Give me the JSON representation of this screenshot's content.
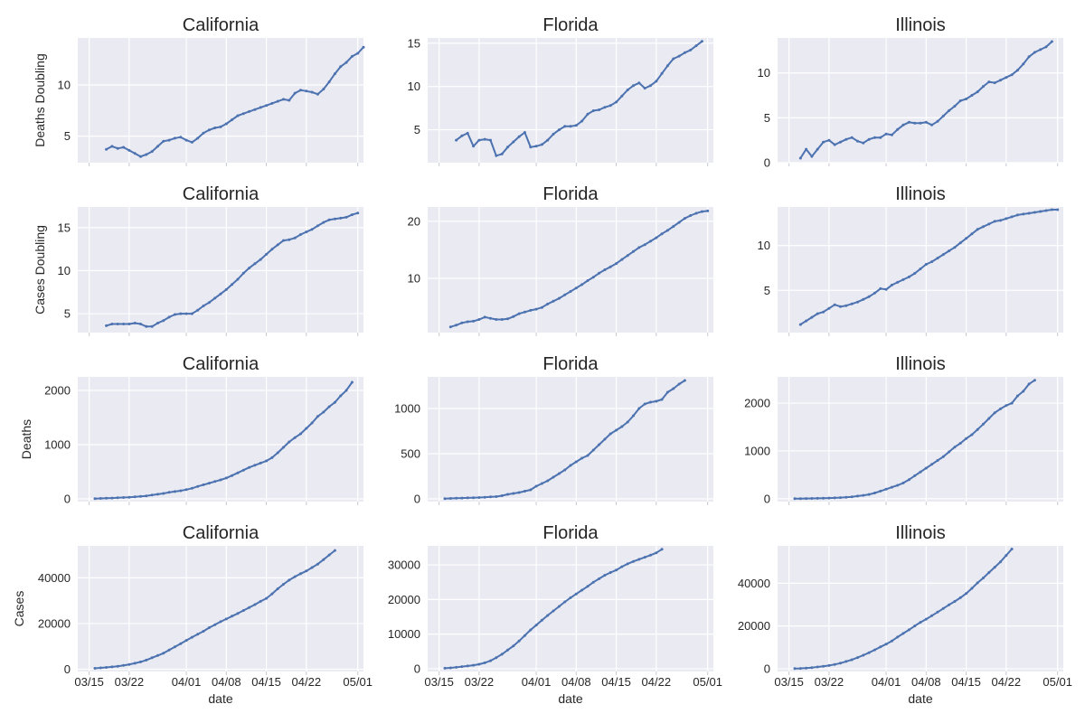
{
  "figure": {
    "xlabel": "date",
    "row_ylabels": [
      "Deaths Doubling",
      "Cases Doubling",
      "Deaths",
      "Cases"
    ],
    "x_tick_labels": [
      "03/15",
      "03/22",
      "04/01",
      "04/08",
      "04/15",
      "04/22",
      "05/01"
    ],
    "line_color": "#4c72b0",
    "background_color": "#eaeaf2",
    "grid_color": "#ffffff",
    "style": "seaborn-darkgrid",
    "grid": true
  },
  "chart_data": [
    {
      "type": "line",
      "title": "California",
      "ylabel": "Deaths Doubling",
      "x_start": "03/18",
      "x_end": "05/01",
      "yticks": [
        5,
        10
      ],
      "ylim": [
        2.4,
        14.6
      ],
      "values": [
        3.7,
        4.0,
        3.8,
        3.9,
        3.6,
        3.3,
        3.0,
        3.2,
        3.5,
        4.0,
        4.5,
        4.6,
        4.8,
        4.9,
        4.6,
        4.4,
        4.8,
        5.3,
        5.6,
        5.8,
        5.9,
        6.2,
        6.6,
        7.0,
        7.2,
        7.4,
        7.6,
        7.8,
        8.0,
        8.2,
        8.4,
        8.6,
        8.5,
        9.2,
        9.5,
        9.4,
        9.3,
        9.1,
        9.6,
        10.3,
        11.1,
        11.8,
        12.2,
        12.8,
        13.1,
        13.7
      ]
    },
    {
      "type": "line",
      "title": "Florida",
      "ylabel": "",
      "x_start": "03/18",
      "x_end": "05/01",
      "yticks": [
        5,
        10,
        15
      ],
      "ylim": [
        1.2,
        15.6
      ],
      "values": [
        3.8,
        4.3,
        4.6,
        3.1,
        3.8,
        3.9,
        3.8,
        2.0,
        2.2,
        3.0,
        3.6,
        4.2,
        4.7,
        3.0,
        3.1,
        3.3,
        3.8,
        4.5,
        5.0,
        5.4,
        5.4,
        5.5,
        6.0,
        6.8,
        7.2,
        7.3,
        7.6,
        7.8,
        8.2,
        8.9,
        9.6,
        10.1,
        10.4,
        9.8,
        10.1,
        10.6,
        11.5,
        12.4,
        13.2,
        13.5,
        13.9,
        14.2,
        14.7,
        15.2
      ]
    },
    {
      "type": "line",
      "title": "Illinois",
      "ylabel": "",
      "x_start": "03/17",
      "x_end": "05/01",
      "yticks": [
        0,
        5,
        10
      ],
      "ylim": [
        0,
        13.9
      ],
      "values": [
        0.5,
        1.5,
        0.7,
        1.5,
        2.3,
        2.5,
        2.0,
        2.3,
        2.6,
        2.8,
        2.4,
        2.2,
        2.6,
        2.8,
        2.8,
        3.2,
        3.1,
        3.7,
        4.2,
        4.5,
        4.4,
        4.4,
        4.5,
        4.2,
        4.6,
        5.2,
        5.8,
        6.3,
        6.9,
        7.1,
        7.5,
        7.9,
        8.5,
        9.0,
        8.9,
        9.2,
        9.5,
        9.8,
        10.3,
        11.0,
        11.8,
        12.3,
        12.6,
        12.9,
        13.5
      ]
    },
    {
      "type": "line",
      "title": "California",
      "ylabel": "Cases Doubling",
      "x_start": "03/18",
      "x_end": "05/01",
      "yticks": [
        5,
        10,
        15
      ],
      "ylim": [
        2.8,
        17.4
      ],
      "values": [
        3.6,
        3.8,
        3.8,
        3.8,
        3.8,
        3.9,
        3.8,
        3.5,
        3.5,
        3.9,
        4.2,
        4.6,
        4.9,
        5.0,
        5.0,
        5.0,
        5.4,
        5.9,
        6.3,
        6.8,
        7.3,
        7.8,
        8.4,
        9.0,
        9.7,
        10.3,
        10.8,
        11.3,
        11.9,
        12.5,
        13.0,
        13.5,
        13.6,
        13.8,
        14.2,
        14.5,
        14.8,
        15.2,
        15.6,
        15.9,
        16.0,
        16.1,
        16.2,
        16.5,
        16.7
      ]
    },
    {
      "type": "line",
      "title": "Florida",
      "ylabel": "",
      "x_start": "03/17",
      "x_end": "05/01",
      "yticks": [
        10,
        20
      ],
      "ylim": [
        0.5,
        22.5
      ],
      "values": [
        1.5,
        1.8,
        2.2,
        2.4,
        2.5,
        2.8,
        3.2,
        3.0,
        2.8,
        2.8,
        2.9,
        3.3,
        3.8,
        4.1,
        4.4,
        4.6,
        4.9,
        5.5,
        6.0,
        6.5,
        7.1,
        7.7,
        8.3,
        8.9,
        9.6,
        10.2,
        10.9,
        11.5,
        12.0,
        12.6,
        13.3,
        14.0,
        14.7,
        15.4,
        15.9,
        16.5,
        17.1,
        17.8,
        18.4,
        19.1,
        19.8,
        20.5,
        21.0,
        21.4,
        21.7,
        21.8
      ]
    },
    {
      "type": "line",
      "title": "Illinois",
      "ylabel": "",
      "x_start": "03/17",
      "x_end": "05/01",
      "yticks": [
        5,
        10
      ],
      "ylim": [
        0.3,
        14.3
      ],
      "values": [
        1.2,
        1.6,
        2.0,
        2.4,
        2.6,
        3.0,
        3.4,
        3.2,
        3.3,
        3.5,
        3.7,
        4.0,
        4.3,
        4.7,
        5.2,
        5.1,
        5.6,
        5.9,
        6.2,
        6.5,
        6.9,
        7.4,
        7.9,
        8.2,
        8.6,
        9.0,
        9.4,
        9.8,
        10.3,
        10.8,
        11.3,
        11.8,
        12.1,
        12.4,
        12.7,
        12.8,
        13.0,
        13.2,
        13.4,
        13.5,
        13.6,
        13.7,
        13.8,
        13.9,
        14.0,
        14.0
      ]
    },
    {
      "type": "line",
      "title": "California",
      "ylabel": "Deaths",
      "x_start": "03/16",
      "x_end": "05/01",
      "yticks": [
        0,
        1000,
        2000
      ],
      "ylim": [
        -50,
        2250
      ],
      "values": [
        5,
        8,
        12,
        15,
        20,
        25,
        30,
        38,
        45,
        55,
        70,
        85,
        100,
        120,
        135,
        150,
        170,
        195,
        230,
        260,
        290,
        320,
        350,
        385,
        430,
        480,
        530,
        580,
        620,
        660,
        700,
        760,
        850,
        950,
        1050,
        1130,
        1200,
        1300,
        1400,
        1520,
        1600,
        1700,
        1780,
        1900,
        2000,
        2150
      ]
    },
    {
      "type": "line",
      "title": "Florida",
      "ylabel": "",
      "x_start": "03/16",
      "x_end": "05/01",
      "yticks": [
        0,
        500,
        1000
      ],
      "ylim": [
        -30,
        1350
      ],
      "values": [
        3,
        5,
        7,
        9,
        11,
        13,
        15,
        18,
        22,
        25,
        35,
        50,
        60,
        70,
        85,
        100,
        140,
        170,
        200,
        240,
        280,
        320,
        370,
        410,
        450,
        480,
        540,
        600,
        660,
        720,
        760,
        800,
        850,
        920,
        1000,
        1050,
        1070,
        1080,
        1100,
        1180,
        1220,
        1270,
        1310
      ]
    },
    {
      "type": "line",
      "title": "Illinois",
      "ylabel": "",
      "x_start": "03/16",
      "x_end": "05/01",
      "yticks": [
        0,
        1000,
        2000
      ],
      "ylim": [
        -60,
        2550
      ],
      "values": [
        0,
        2,
        4,
        6,
        8,
        10,
        14,
        18,
        24,
        30,
        40,
        55,
        70,
        90,
        120,
        160,
        200,
        240,
        280,
        330,
        400,
        480,
        560,
        640,
        720,
        800,
        880,
        980,
        1080,
        1160,
        1260,
        1340,
        1450,
        1560,
        1680,
        1800,
        1880,
        1950,
        2000,
        2150,
        2250,
        2400,
        2480
      ]
    },
    {
      "type": "line",
      "title": "California",
      "ylabel": "Cases",
      "x_start": "03/16",
      "x_end": "05/01",
      "yticks": [
        0,
        20000,
        40000
      ],
      "ylim": [
        -1000,
        54000
      ],
      "values": [
        400,
        600,
        800,
        1000,
        1300,
        1700,
        2100,
        2600,
        3200,
        4000,
        5000,
        6000,
        7000,
        8400,
        9800,
        11200,
        12600,
        14000,
        15300,
        16600,
        18200,
        19500,
        20800,
        22000,
        23200,
        24400,
        25700,
        27000,
        28300,
        29700,
        31000,
        33000,
        35200,
        37200,
        39000,
        40500,
        41800,
        43000,
        44500,
        46000,
        48000,
        50000,
        52000
      ]
    },
    {
      "type": "line",
      "title": "Florida",
      "ylabel": "",
      "x_start": "03/16",
      "x_end": "05/01",
      "yticks": [
        0,
        10000,
        20000,
        30000
      ],
      "ylim": [
        -800,
        35500
      ],
      "values": [
        150,
        250,
        400,
        600,
        800,
        1000,
        1300,
        1700,
        2300,
        3200,
        4200,
        5400,
        6600,
        8000,
        9600,
        11200,
        12600,
        14000,
        15400,
        16700,
        18000,
        19300,
        20500,
        21600,
        22700,
        23800,
        25000,
        26000,
        27000,
        27800,
        28500,
        29500,
        30300,
        31000,
        31600,
        32200,
        32800,
        33500,
        34500
      ]
    },
    {
      "type": "line",
      "title": "Illinois",
      "ylabel": "",
      "x_start": "03/16",
      "x_end": "05/01",
      "yticks": [
        0,
        20000,
        40000
      ],
      "ylim": [
        -1300,
        57500
      ],
      "values": [
        50,
        150,
        300,
        500,
        800,
        1100,
        1500,
        2000,
        2600,
        3400,
        4200,
        5200,
        6300,
        7500,
        8800,
        10200,
        11500,
        13000,
        14800,
        16500,
        18200,
        20000,
        21700,
        23200,
        24800,
        26500,
        28200,
        29900,
        31500,
        33200,
        35200,
        37600,
        40200,
        42500,
        45000,
        47500,
        50000,
        53000,
        56000
      ]
    }
  ]
}
